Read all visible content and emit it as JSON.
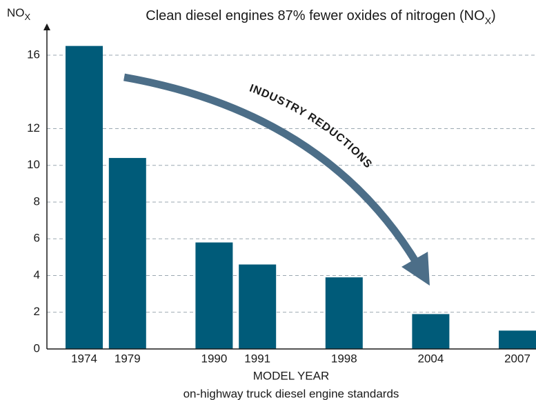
{
  "chart_data": {
    "type": "bar",
    "title": [
      "Clean diesel engines 87% fewer oxides of nitrogen (NO",
      "X",
      ")"
    ],
    "y_label": [
      "NO",
      "X"
    ],
    "x_label": "MODEL YEAR",
    "subtitle": "on-highway truck diesel engine standards",
    "annotation": "INDUSTRY REDUCTIONS",
    "categories": [
      "1974",
      "1979",
      null,
      "1990",
      "1991",
      null,
      "1998",
      null,
      "2004",
      null,
      "2007"
    ],
    "values": [
      16.5,
      10.4,
      null,
      5.8,
      4.6,
      null,
      3.9,
      null,
      1.9,
      null,
      1.0
    ],
    "color": "#005b79",
    "ylim": [
      0,
      17.5
    ],
    "yticks": [
      0,
      2,
      4,
      6,
      8,
      10,
      12,
      16
    ],
    "grid": true
  }
}
